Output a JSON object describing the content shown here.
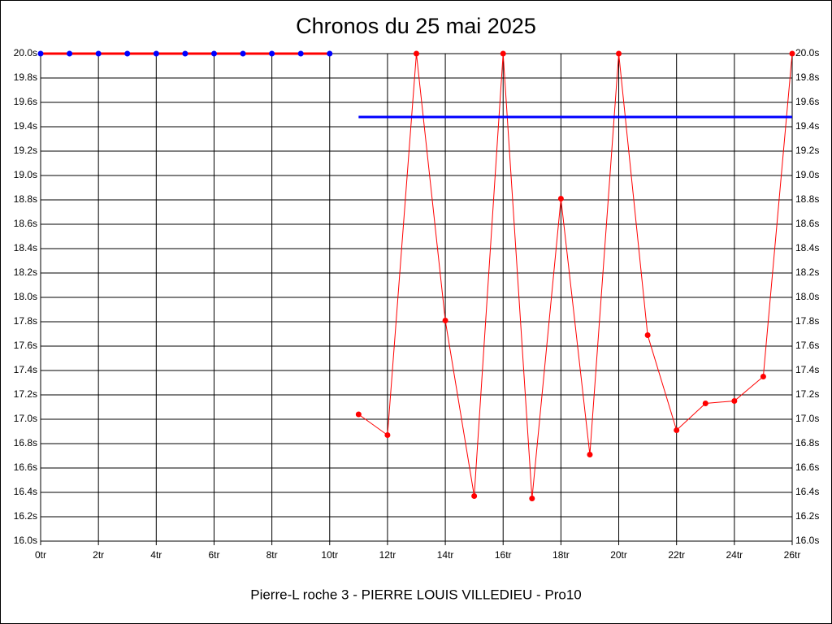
{
  "chart_data": {
    "type": "line",
    "title": "Chronos du 25 mai 2025",
    "x_label": "Pierre-L roche 3 - PIERRE LOUIS VILLEDIEU - Pro10",
    "xlim": [
      0,
      26
    ],
    "xticks": [
      {
        "value": 0,
        "label": "0tr"
      },
      {
        "value": 2,
        "label": "2tr"
      },
      {
        "value": 4,
        "label": "4tr"
      },
      {
        "value": 6,
        "label": "6tr"
      },
      {
        "value": 8,
        "label": "8tr"
      },
      {
        "value": 10,
        "label": "10tr"
      },
      {
        "value": 12,
        "label": "12tr"
      },
      {
        "value": 14,
        "label": "14tr"
      },
      {
        "value": 16,
        "label": "16tr"
      },
      {
        "value": 18,
        "label": "18tr"
      },
      {
        "value": 20,
        "label": "20tr"
      },
      {
        "value": 22,
        "label": "22tr"
      },
      {
        "value": 24,
        "label": "24tr"
      },
      {
        "value": 26,
        "label": "26tr"
      }
    ],
    "ylim": [
      16.0,
      20.0
    ],
    "yticks": [
      {
        "value": 16.0,
        "label": "16.0s"
      },
      {
        "value": 16.2,
        "label": "16.2s"
      },
      {
        "value": 16.4,
        "label": "16.4s"
      },
      {
        "value": 16.6,
        "label": "16.6s"
      },
      {
        "value": 16.8,
        "label": "16.8s"
      },
      {
        "value": 17.0,
        "label": "17.0s"
      },
      {
        "value": 17.2,
        "label": "17.2s"
      },
      {
        "value": 17.4,
        "label": "17.4s"
      },
      {
        "value": 17.6,
        "label": "17.6s"
      },
      {
        "value": 17.8,
        "label": "17.8s"
      },
      {
        "value": 18.0,
        "label": "18.0s"
      },
      {
        "value": 18.2,
        "label": "18.2s"
      },
      {
        "value": 18.4,
        "label": "18.4s"
      },
      {
        "value": 18.6,
        "label": "18.6s"
      },
      {
        "value": 18.8,
        "label": "18.8s"
      },
      {
        "value": 19.0,
        "label": "19.0s"
      },
      {
        "value": 19.2,
        "label": "19.2s"
      },
      {
        "value": 19.4,
        "label": "19.4s"
      },
      {
        "value": 19.6,
        "label": "19.6s"
      },
      {
        "value": 19.8,
        "label": "19.8s"
      },
      {
        "value": 20.0,
        "label": "20.0s"
      }
    ],
    "grid": true,
    "series": [
      {
        "x": [
          0,
          1,
          2,
          3,
          4,
          5,
          6,
          7,
          8,
          9,
          10
        ],
        "values": [
          20.0,
          20.0,
          20.0,
          20.0,
          20.0,
          20.0,
          20.0,
          20.0,
          20.0,
          20.0,
          20.0
        ],
        "color": "#ff0000",
        "marker_color": "#0000ff",
        "line_width": 3,
        "markers": true
      },
      {
        "x": [
          11,
          12,
          13,
          14,
          15,
          16,
          17,
          18,
          19,
          20,
          21,
          22,
          23,
          24,
          25,
          26
        ],
        "values": [
          17.04,
          16.87,
          20.0,
          17.81,
          16.37,
          20.0,
          16.35,
          18.81,
          16.71,
          20.0,
          17.69,
          16.91,
          17.13,
          17.15,
          17.35,
          20.0
        ],
        "color": "#ff0000",
        "marker_color": "#ff0000",
        "line_width": 1,
        "markers": true
      },
      {
        "x": [
          11,
          26
        ],
        "values": [
          19.48,
          19.48
        ],
        "color": "#0000ff",
        "marker_color": "#0000ff",
        "line_width": 3,
        "markers": false
      }
    ]
  }
}
